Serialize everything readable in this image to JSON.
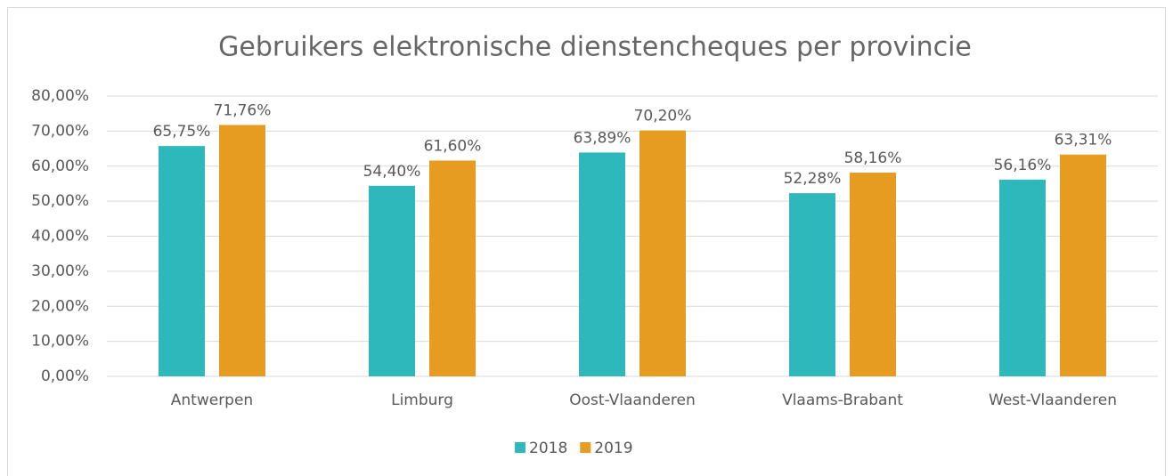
{
  "chart_data": {
    "type": "bar",
    "title": "Gebruikers elektronische dienstencheques per provincie",
    "categories": [
      "Antwerpen",
      "Limburg",
      "Oost-Vlaanderen",
      "Vlaams-Brabant",
      "West-Vlaanderen"
    ],
    "series": [
      {
        "name": "2018",
        "color": "#2fb8bc",
        "values": [
          65.75,
          54.4,
          63.89,
          52.28,
          56.16
        ],
        "value_labels": [
          "65,75%",
          "54,40%",
          "63,89%",
          "52,28%",
          "56,16%"
        ]
      },
      {
        "name": "2019",
        "color": "#e69c20",
        "values": [
          71.76,
          61.6,
          70.2,
          58.16,
          63.31
        ],
        "value_labels": [
          "71,76%",
          "61,60%",
          "70,20%",
          "58,16%",
          "63,31%"
        ]
      }
    ],
    "ylim": [
      0,
      80
    ],
    "yticks": [
      {
        "value": 0,
        "label": "0,00%"
      },
      {
        "value": 10,
        "label": "10,00%"
      },
      {
        "value": 20,
        "label": "20,00%"
      },
      {
        "value": 30,
        "label": "30,00%"
      },
      {
        "value": 40,
        "label": "40,00%"
      },
      {
        "value": 50,
        "label": "50,00%"
      },
      {
        "value": 60,
        "label": "60,00%"
      },
      {
        "value": 70,
        "label": "70,00%"
      },
      {
        "value": 80,
        "label": "80,00%"
      }
    ],
    "grid": true,
    "legend": "bottom"
  }
}
